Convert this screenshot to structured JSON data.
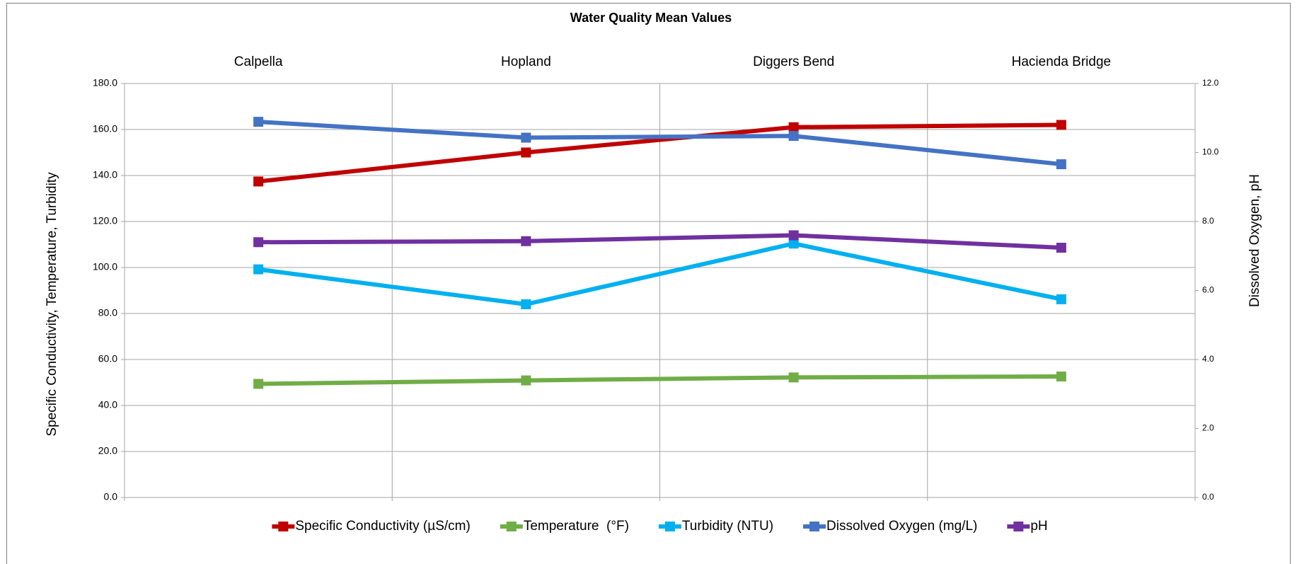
{
  "chart_data": {
    "type": "line",
    "title": "Water Quality Mean Values",
    "y_label": "Specific Conductivity, Temperature, Turbidity",
    "y2_label": "Dissolved Oxygen, pH",
    "categories": [
      "Calpella",
      "Hopland",
      "Diggers Bend",
      "Hacienda Bridge"
    ],
    "series": [
      {
        "name": "Specific Conductivity (µS/cm)",
        "color": "#c00000",
        "values": [
          137.4,
          150.0,
          161.0,
          162.0
        ]
      },
      {
        "name": "Temperature  (°F)",
        "color": "#70ad47",
        "values": [
          49.4,
          50.9,
          52.2,
          52.6
        ]
      },
      {
        "name": "Turbidity (NTU)",
        "color": "#00b0f0",
        "values": [
          99.2,
          84.0,
          110.4,
          86.2
        ]
      },
      {
        "name": "Dissolved Oxygen (mg/L)",
        "color": "#4472c4",
        "axis": "y2",
        "values": [
          10.89,
          10.43,
          10.48,
          9.66
        ]
      },
      {
        "name": "pH",
        "color": "#7030a0",
        "axis": "y2",
        "values": [
          7.4,
          7.43,
          7.6,
          7.24
        ]
      }
    ],
    "ylim": [
      0,
      180
    ],
    "yticks": [
      {
        "value": 0,
        "label": "0.0"
      },
      {
        "value": 20,
        "label": "20.0"
      },
      {
        "value": 40,
        "label": "40.0"
      },
      {
        "value": 60,
        "label": "60.0"
      },
      {
        "value": 80,
        "label": "80.0"
      },
      {
        "value": 100,
        "label": "100.0"
      },
      {
        "value": 120,
        "label": "120.0"
      },
      {
        "value": 140,
        "label": "140.0"
      },
      {
        "value": 160,
        "label": "160.0"
      },
      {
        "value": 180,
        "label": "180.0"
      }
    ],
    "y2lim": [
      0,
      12
    ],
    "y2ticks": [
      {
        "value": 0,
        "label": "0.0"
      },
      {
        "value": 2,
        "label": "2.0"
      },
      {
        "value": 4,
        "label": "4.0"
      },
      {
        "value": 6,
        "label": "6.0"
      },
      {
        "value": 8,
        "label": "8.0"
      },
      {
        "value": 10,
        "label": "10.0"
      },
      {
        "value": 12,
        "label": "12.0"
      }
    ],
    "grid": true,
    "legend": "bottom"
  }
}
